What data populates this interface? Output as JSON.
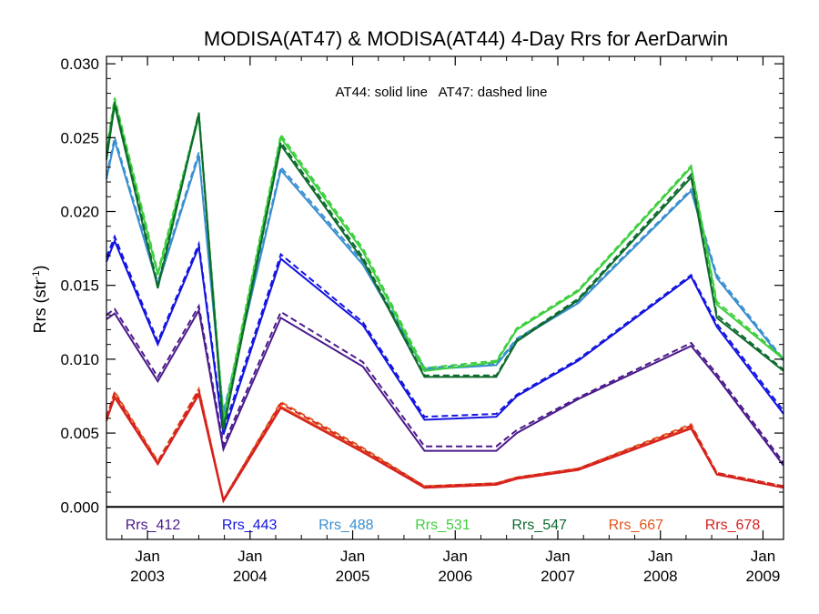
{
  "chart_data": {
    "type": "line",
    "title": "MODISA(AT47) & MODISA(AT44) 4-Day Rrs for AerDarwin",
    "ylabel_main": "Rrs (str",
    "ylabel_sup": "-1",
    "ylabel_close": ")",
    "annotation": "AT44: solid line   AT47: dashed line",
    "xlim": [
      2002.6,
      2009.2
    ],
    "ylim": [
      -0.0022,
      0.0305
    ],
    "yticks": [
      {
        "value": 0.0,
        "label": "0.000"
      },
      {
        "value": 0.005,
        "label": "0.005"
      },
      {
        "value": 0.01,
        "label": "0.010"
      },
      {
        "value": 0.015,
        "label": "0.015"
      },
      {
        "value": 0.02,
        "label": "0.020"
      },
      {
        "value": 0.025,
        "label": "0.025"
      },
      {
        "value": 0.03,
        "label": "0.030"
      }
    ],
    "xticks": [
      {
        "value": 2003.0,
        "month": "Jan",
        "year": "2003"
      },
      {
        "value": 2004.0,
        "month": "Jan",
        "year": "2004"
      },
      {
        "value": 2005.0,
        "month": "Jan",
        "year": "2005"
      },
      {
        "value": 2006.0,
        "month": "Jan",
        "year": "2006"
      },
      {
        "value": 2007.0,
        "month": "Jan",
        "year": "2007"
      },
      {
        "value": 2008.0,
        "month": "Jan",
        "year": "2008"
      },
      {
        "value": 2009.0,
        "month": "Jan",
        "year": "2009"
      }
    ],
    "zero_line": 0.0,
    "x": [
      2002.6,
      2002.68,
      2003.1,
      2003.5,
      2003.74,
      2004.3,
      2005.1,
      2005.7,
      2006.4,
      2006.6,
      2007.2,
      2008.3,
      2008.55,
      2009.2
    ],
    "series": [
      {
        "name": "Rrs_412",
        "color": "#4b1a8c",
        "solid": [
          0.0127,
          0.0131,
          0.0085,
          0.0133,
          0.0039,
          0.0128,
          0.0095,
          0.0038,
          0.0038,
          0.005,
          0.0073,
          0.0109,
          0.0088,
          0.0028
        ],
        "dashed": [
          0.013,
          0.0134,
          0.0088,
          0.0136,
          0.0042,
          0.0132,
          0.0098,
          0.0041,
          0.0041,
          0.0052,
          0.0074,
          0.0111,
          0.009,
          0.003
        ]
      },
      {
        "name": "Rrs_443",
        "color": "#1414e0",
        "solid": [
          0.0166,
          0.018,
          0.011,
          0.0176,
          0.0049,
          0.0168,
          0.0123,
          0.0059,
          0.0061,
          0.0075,
          0.0099,
          0.0156,
          0.0122,
          0.0063
        ],
        "dashed": [
          0.0169,
          0.0183,
          0.0112,
          0.0178,
          0.0052,
          0.0171,
          0.0125,
          0.0061,
          0.0063,
          0.0076,
          0.01,
          0.0157,
          0.0124,
          0.0065
        ]
      },
      {
        "name": "Rrs_488",
        "color": "#3a8fd0",
        "solid": [
          0.0222,
          0.0248,
          0.015,
          0.0238,
          0.0062,
          0.0228,
          0.0164,
          0.0093,
          0.0096,
          0.0113,
          0.0138,
          0.0214,
          0.0155,
          0.0099
        ],
        "dashed": [
          0.0224,
          0.025,
          0.0152,
          0.024,
          0.0064,
          0.023,
          0.0166,
          0.0094,
          0.0097,
          0.0114,
          0.0139,
          0.0215,
          0.0157,
          0.01
        ]
      },
      {
        "name": "Rrs_531",
        "color": "#3ecf3e",
        "solid": [
          0.024,
          0.0275,
          0.0157,
          0.0264,
          0.0058,
          0.025,
          0.0173,
          0.0092,
          0.0098,
          0.012,
          0.0146,
          0.023,
          0.0137,
          0.01
        ],
        "dashed": [
          0.0242,
          0.0277,
          0.0159,
          0.0266,
          0.006,
          0.0252,
          0.0175,
          0.0094,
          0.0099,
          0.0121,
          0.0147,
          0.0231,
          0.0139,
          0.0101
        ]
      },
      {
        "name": "Rrs_547",
        "color": "#0e6b2e",
        "solid": [
          0.0235,
          0.0272,
          0.0148,
          0.0266,
          0.0052,
          0.0245,
          0.0167,
          0.0088,
          0.0088,
          0.0112,
          0.014,
          0.0223,
          0.0128,
          0.0092
        ],
        "dashed": [
          0.0237,
          0.0274,
          0.015,
          0.0267,
          0.0054,
          0.0247,
          0.0169,
          0.0089,
          0.0089,
          0.0113,
          0.0141,
          0.0225,
          0.013,
          0.0093
        ]
      },
      {
        "name": "Rrs_667",
        "color": "#e0561a",
        "solid": [
          0.0058,
          0.0075,
          0.0029,
          0.0077,
          0.0004,
          0.0068,
          0.0038,
          0.0013,
          0.0015,
          0.0019,
          0.0025,
          0.0054,
          0.0022,
          0.0013
        ],
        "dashed": [
          0.006,
          0.0078,
          0.0031,
          0.008,
          0.0005,
          0.0071,
          0.004,
          0.0014,
          0.0016,
          0.002,
          0.0026,
          0.0056,
          0.0023,
          0.0014
        ]
      },
      {
        "name": "Rrs_678",
        "color": "#d62020",
        "solid": [
          0.0059,
          0.0074,
          0.0029,
          0.0076,
          0.0004,
          0.0067,
          0.0037,
          0.0013,
          0.0015,
          0.0019,
          0.0025,
          0.0053,
          0.0022,
          0.0013
        ],
        "dashed": [
          0.0061,
          0.0077,
          0.003,
          0.0079,
          0.0005,
          0.007,
          0.0039,
          0.0014,
          0.0016,
          0.002,
          0.0026,
          0.0055,
          0.0023,
          0.0014
        ]
      }
    ]
  }
}
